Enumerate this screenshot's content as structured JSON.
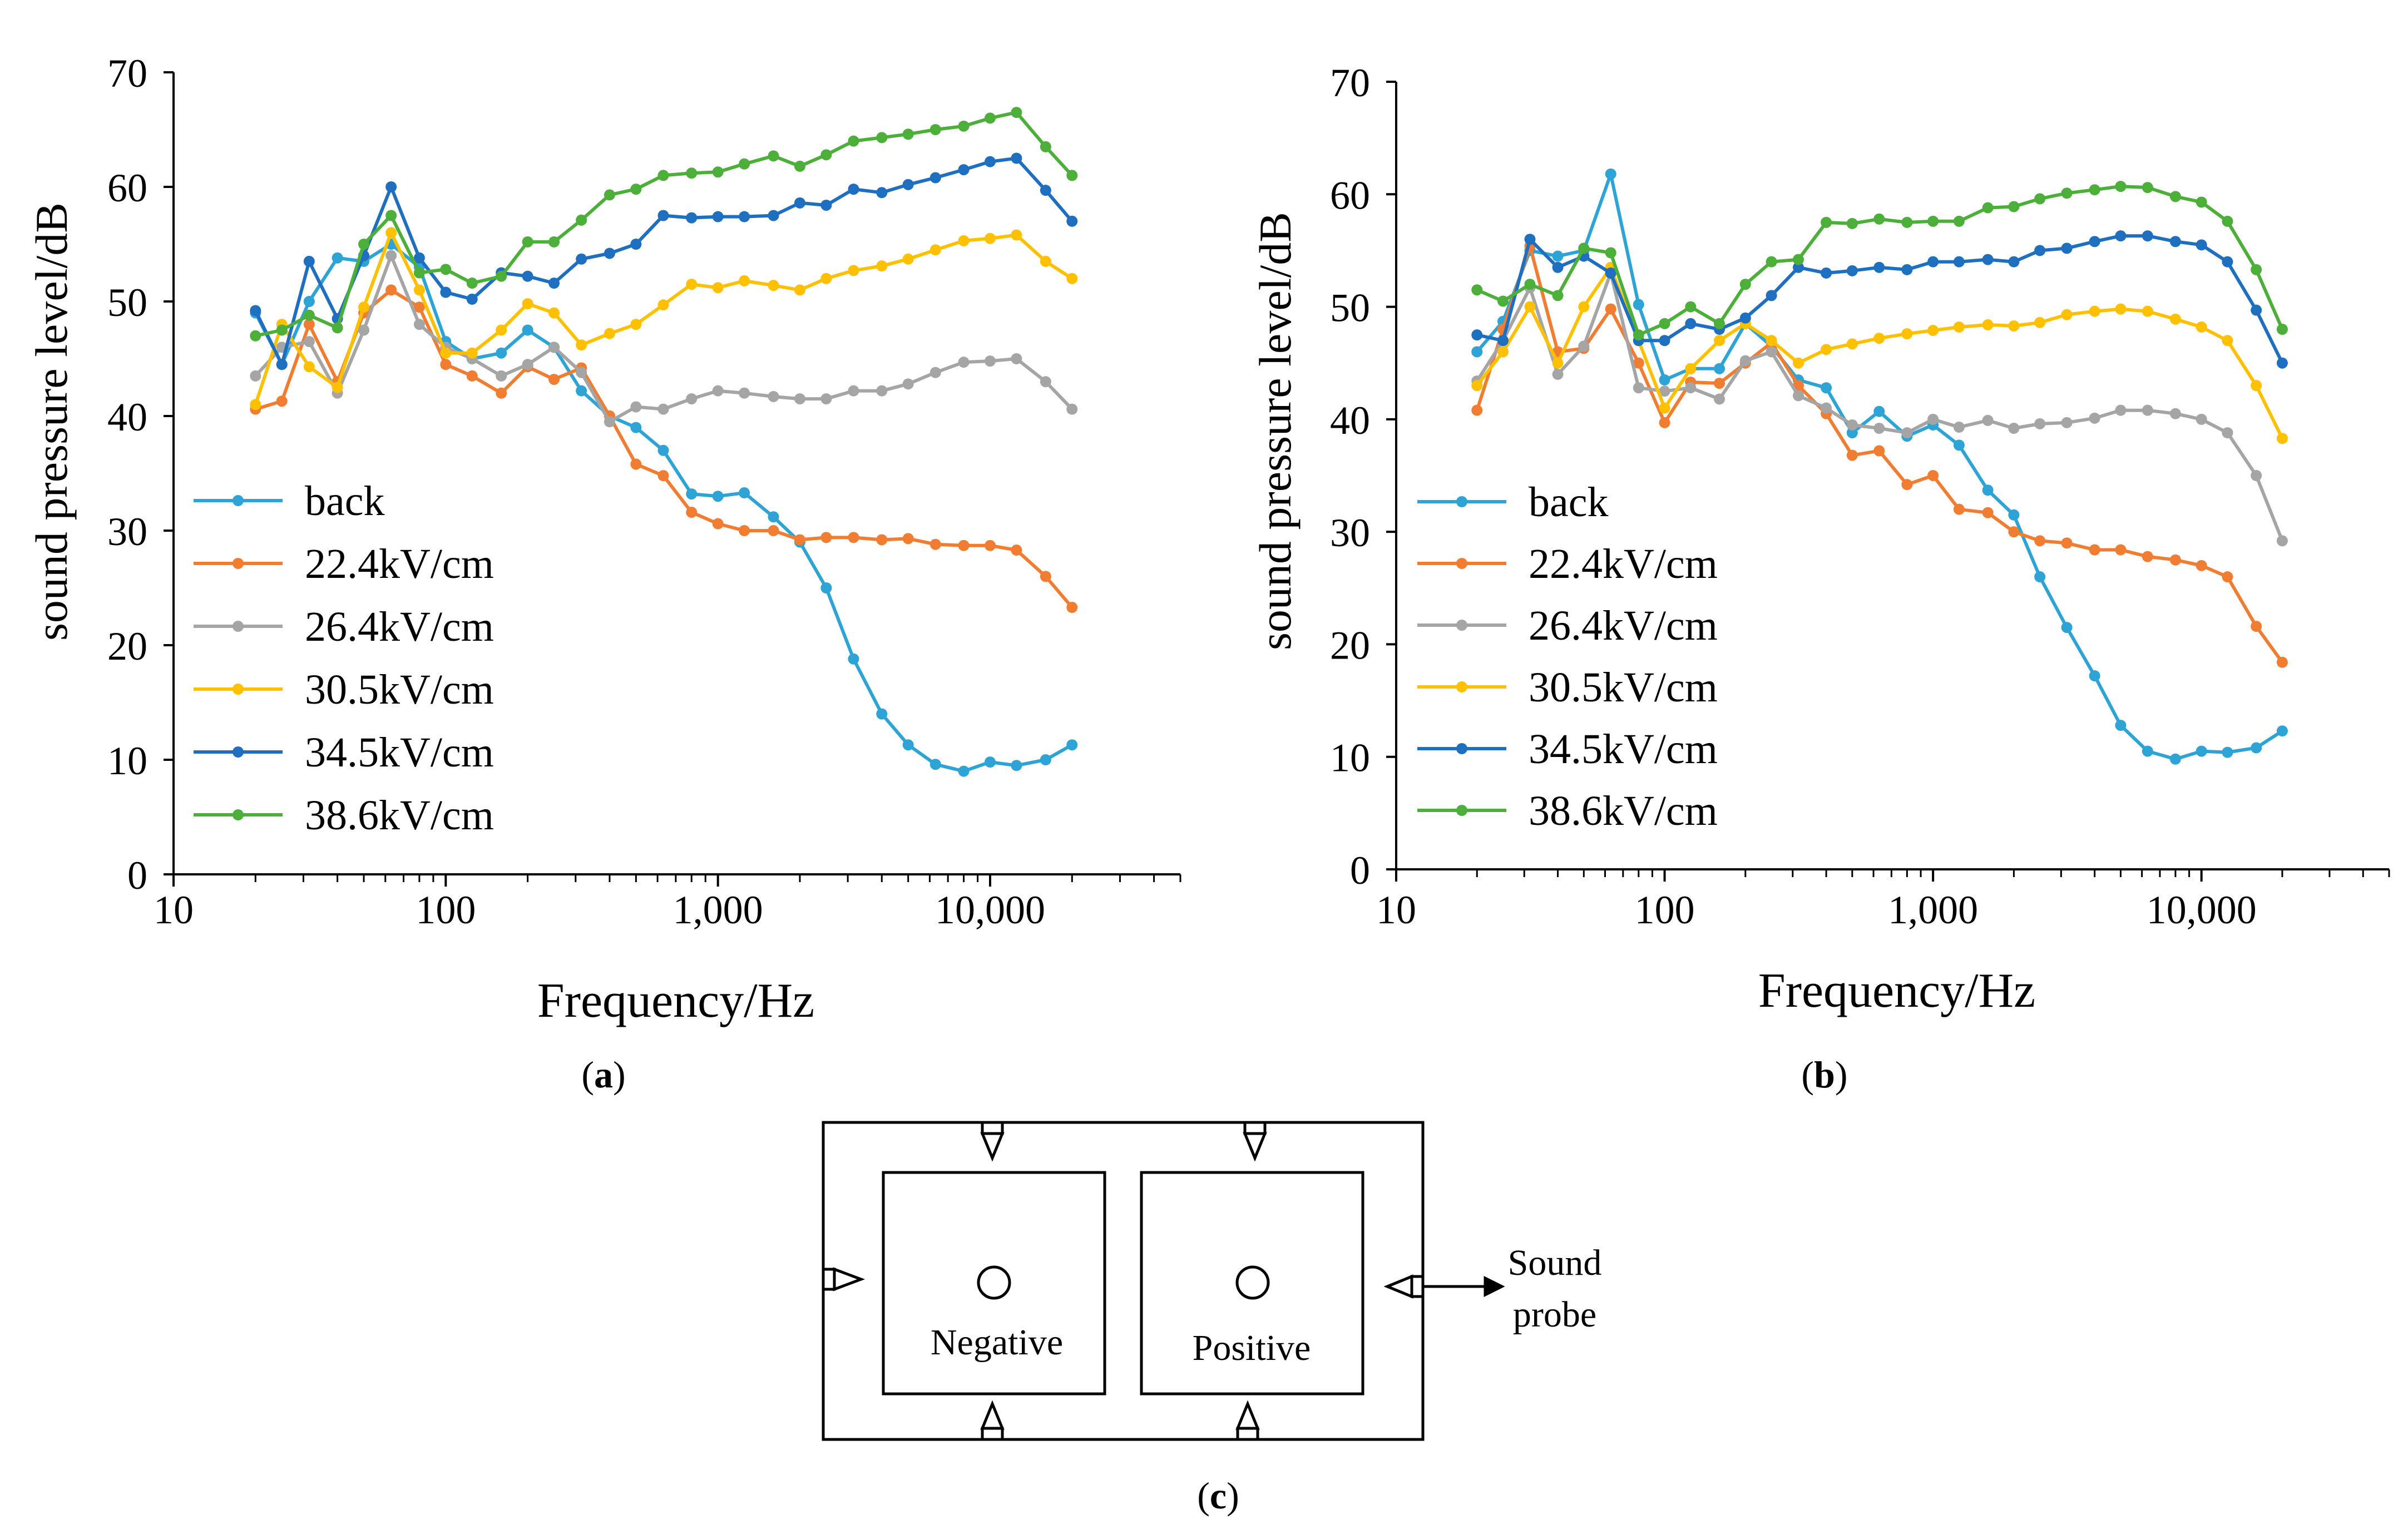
{
  "chart_data": [
    {
      "id": "a",
      "type": "line",
      "caption": "a",
      "xscale": "log",
      "xlim": [
        10,
        50000
      ],
      "ylim": [
        0,
        70
      ],
      "xticks": [
        10,
        100,
        1000,
        10000
      ],
      "xtick_labels": [
        "10",
        "100",
        "1,000",
        "10,000"
      ],
      "yticks": [
        0,
        10,
        20,
        30,
        40,
        50,
        60,
        70
      ],
      "ytick_labels": [
        "0",
        "10",
        "20",
        "30",
        "40",
        "50",
        "60",
        "70"
      ],
      "xlabel": "Frequency/Hz",
      "ylabel": "sound pressure level/dB",
      "legend_position": "center-left",
      "x": [
        20,
        25,
        31.5,
        40,
        50,
        63,
        80,
        100,
        125,
        160,
        200,
        250,
        315,
        400,
        500,
        630,
        800,
        1000,
        1250,
        1600,
        2000,
        2500,
        3150,
        4000,
        5000,
        6300,
        8000,
        10000,
        12500,
        16000,
        20000
      ],
      "series": [
        {
          "name": "back",
          "color": "#2EA3D6",
          "values": [
            49,
            44.5,
            50,
            53.8,
            53.5,
            55,
            53,
            46.5,
            45,
            45.5,
            47.5,
            46,
            42.2,
            40,
            39,
            37,
            33.2,
            33,
            33.3,
            31.2,
            29,
            25,
            18.8,
            14,
            11.3,
            9.6,
            9,
            9.8,
            9.5,
            10,
            11.3
          ]
        },
        {
          "name": "22.4kV/cm",
          "color": "#F07D32",
          "values": [
            40.6,
            41.3,
            48,
            43,
            49,
            51,
            49.5,
            44.5,
            43.5,
            42,
            44.3,
            43.2,
            44.2,
            40,
            35.8,
            34.8,
            31.6,
            30.6,
            30,
            30,
            29.2,
            29.4,
            29.4,
            29.2,
            29.3,
            28.8,
            28.7,
            28.7,
            28.3,
            26,
            23.3
          ]
        },
        {
          "name": "26.4kV/cm",
          "color": "#A5A5A5",
          "values": [
            43.5,
            46,
            46.5,
            42,
            47.5,
            54,
            48,
            46,
            45,
            43.5,
            44.5,
            46,
            43.8,
            39.5,
            40.8,
            40.6,
            41.5,
            42.2,
            42,
            41.7,
            41.5,
            41.5,
            42.2,
            42.2,
            42.8,
            43.8,
            44.7,
            44.8,
            45,
            43,
            40.6
          ]
        },
        {
          "name": "30.5kV/cm",
          "color": "#FFC000",
          "values": [
            41,
            48,
            44.3,
            42.5,
            49.5,
            56,
            51,
            45.5,
            45.5,
            47.5,
            49.8,
            49,
            46.2,
            47.2,
            48,
            49.7,
            51.5,
            51.2,
            51.8,
            51.4,
            51,
            52,
            52.7,
            53.1,
            53.7,
            54.5,
            55.3,
            55.5,
            55.8,
            53.5,
            52
          ]
        },
        {
          "name": "34.5kV/cm",
          "color": "#1F6FC0",
          "values": [
            49.2,
            44.5,
            53.5,
            48.5,
            54,
            60,
            53.8,
            50.8,
            50.2,
            52.5,
            52.2,
            51.6,
            53.7,
            54.2,
            55,
            57.5,
            57.3,
            57.4,
            57.4,
            57.5,
            58.6,
            58.4,
            59.8,
            59.5,
            60.2,
            60.8,
            61.5,
            62.2,
            62.5,
            59.7,
            57
          ]
        },
        {
          "name": "38.6kV/cm",
          "color": "#4CAF3A",
          "values": [
            47,
            47.5,
            48.8,
            47.7,
            55,
            57.5,
            52.5,
            52.8,
            51.6,
            52.2,
            55.2,
            55.2,
            57.1,
            59.3,
            59.8,
            61,
            61.2,
            61.3,
            62,
            62.7,
            61.8,
            62.8,
            64,
            64.3,
            64.6,
            65,
            65.3,
            66,
            66.5,
            63.5,
            61
          ]
        }
      ]
    },
    {
      "id": "b",
      "type": "line",
      "caption": "b",
      "xscale": "log",
      "xlim": [
        10,
        50000
      ],
      "ylim": [
        0,
        70
      ],
      "xticks": [
        10,
        100,
        1000,
        10000
      ],
      "xtick_labels": [
        "10",
        "100",
        "1,000",
        "10,000"
      ],
      "yticks": [
        0,
        10,
        20,
        30,
        40,
        50,
        60,
        70
      ],
      "ytick_labels": [
        "0",
        "10",
        "20",
        "30",
        "40",
        "50",
        "60",
        "70"
      ],
      "xlabel": "Frequency/Hz",
      "ylabel": "sound pressure level/dB",
      "legend_position": "center-left",
      "x": [
        20,
        25,
        31.5,
        40,
        50,
        63,
        80,
        100,
        125,
        160,
        200,
        250,
        315,
        400,
        500,
        630,
        800,
        1000,
        1250,
        1600,
        2000,
        2500,
        3150,
        4000,
        5000,
        6300,
        8000,
        10000,
        12500,
        16000,
        20000
      ],
      "series": [
        {
          "name": "back",
          "color": "#2EA3D6",
          "values": [
            46,
            48.7,
            55,
            54.5,
            55,
            61.8,
            50.2,
            43.5,
            44.5,
            44.5,
            48.5,
            46.5,
            43.5,
            42.8,
            38.8,
            40.7,
            38.5,
            39.5,
            37.7,
            33.7,
            31.5,
            26,
            21.5,
            17.2,
            12.8,
            10.5,
            9.8,
            10.5,
            10.4,
            10.8,
            12.3
          ]
        },
        {
          "name": "22.4kV/cm",
          "color": "#F07D32",
          "values": [
            40.8,
            48,
            55.4,
            46,
            46.3,
            49.8,
            45,
            39.7,
            43.3,
            43.2,
            45,
            46.8,
            43,
            40.5,
            36.8,
            37.2,
            34.2,
            35,
            32,
            31.7,
            30,
            29.2,
            29,
            28.4,
            28.4,
            27.8,
            27.5,
            27,
            26,
            21.6,
            18.4
          ]
        },
        {
          "name": "26.4kV/cm",
          "color": "#A5A5A5",
          "values": [
            43.4,
            47,
            51.7,
            44,
            46.5,
            53,
            42.8,
            42.5,
            42.8,
            41.8,
            45.2,
            46,
            42.1,
            41,
            39.5,
            39.2,
            38.8,
            40,
            39.3,
            39.9,
            39.2,
            39.6,
            39.7,
            40.1,
            40.8,
            40.8,
            40.5,
            40,
            38.8,
            35,
            29.2
          ]
        },
        {
          "name": "30.5kV/cm",
          "color": "#FFC000",
          "values": [
            43,
            46,
            50,
            45,
            50,
            53.5,
            47,
            41,
            44.5,
            47,
            48.5,
            47,
            45,
            46.2,
            46.7,
            47.2,
            47.6,
            47.9,
            48.2,
            48.4,
            48.3,
            48.6,
            49.3,
            49.6,
            49.8,
            49.6,
            48.9,
            48.2,
            47,
            43,
            38.3
          ]
        },
        {
          "name": "34.5kV/cm",
          "color": "#1F6FC0",
          "values": [
            47.5,
            47,
            56,
            53.5,
            54.5,
            53,
            47,
            47,
            48.5,
            48,
            49,
            51,
            53.5,
            53,
            53.2,
            53.5,
            53.3,
            54,
            54,
            54.2,
            54,
            55,
            55.2,
            55.8,
            56.3,
            56.3,
            55.8,
            55.5,
            54,
            49.7,
            45
          ]
        },
        {
          "name": "38.6kV/cm",
          "color": "#4CAF3A",
          "values": [
            51.5,
            50.5,
            52,
            51,
            55.2,
            54.8,
            47.5,
            48.5,
            50,
            48.5,
            52,
            54,
            54.2,
            57.5,
            57.4,
            57.8,
            57.5,
            57.6,
            57.6,
            58.8,
            58.9,
            59.6,
            60.1,
            60.4,
            60.7,
            60.6,
            59.8,
            59.3,
            57.6,
            53.3,
            48
          ]
        }
      ]
    }
  ],
  "figure_c": {
    "caption": "c",
    "left_box_label": "Negative",
    "right_box_label": "Positive",
    "probe_label_line1": "Sound",
    "probe_label_line2": "probe"
  }
}
